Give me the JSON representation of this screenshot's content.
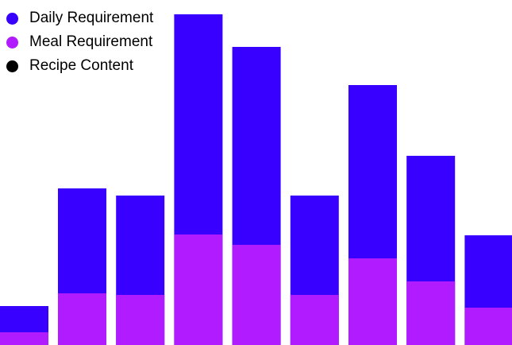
{
  "chart_data": {
    "type": "bar",
    "stacked": false,
    "overlapping": true,
    "grid": false,
    "legend_position": "top-left",
    "categories": [
      "",
      "",
      "",
      "",
      "",
      "",
      "",
      "",
      ""
    ],
    "series": [
      {
        "name": "Daily Requirement",
        "color": "#3700FF",
        "values": [
          49,
          197,
          188,
          416,
          375,
          188,
          327,
          238,
          138
        ]
      },
      {
        "name": "Meal Requirement",
        "color": "#B01BFF",
        "values": [
          16,
          65,
          63,
          139,
          126,
          63,
          109,
          80,
          47
        ]
      },
      {
        "name": "Recipe Content",
        "color": "#000000",
        "values": [
          0,
          0,
          0,
          0,
          0,
          0,
          0,
          0,
          0
        ]
      }
    ],
    "ylim": [
      0,
      416
    ],
    "title": "",
    "xlabel": "",
    "ylabel": ""
  }
}
